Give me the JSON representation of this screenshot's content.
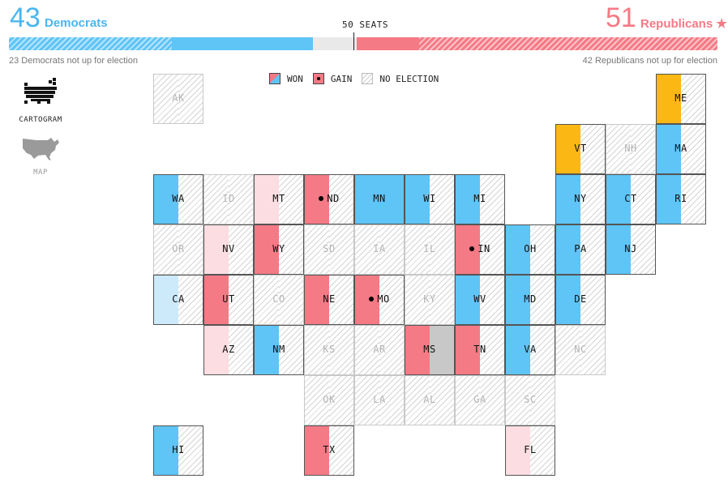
{
  "header": {
    "dem_count": "43",
    "dem_label": "Democrats",
    "rep_count": "51",
    "rep_label": "Republicans ★",
    "seats_label": "50 SEATS",
    "dem_note": "23 Democrats not up for election",
    "rep_note": "42 Republicans not up for election"
  },
  "views": {
    "cartogram_label": "CARTOGRAM",
    "map_label": "MAP",
    "active": "CARTOGRAM"
  },
  "legend": {
    "won": "WON",
    "gain": "GAIN",
    "no_election": "NO ELECTION"
  },
  "colors": {
    "dem": "#5fc4f6",
    "dem_light": "#cdeafb",
    "rep": "#f47a85",
    "rep_light": "#fcdde1",
    "ind": "#fbb714",
    "uncalled": "#c8c8c8"
  },
  "states": [
    {
      "abbr": "AK",
      "result": "none",
      "gain": false
    },
    {
      "abbr": "ME",
      "result": "ind",
      "gain": false
    },
    {
      "abbr": "VT",
      "result": "ind",
      "gain": false
    },
    {
      "abbr": "NH",
      "result": "none",
      "gain": false
    },
    {
      "abbr": "MA",
      "result": "dem",
      "gain": false
    },
    {
      "abbr": "WA",
      "result": "dem",
      "gain": false
    },
    {
      "abbr": "ID",
      "result": "none",
      "gain": false
    },
    {
      "abbr": "MT",
      "result": "rep_light",
      "gain": false
    },
    {
      "abbr": "ND",
      "result": "rep",
      "gain": true
    },
    {
      "abbr": "MN",
      "result": "dem_full",
      "gain": false
    },
    {
      "abbr": "WI",
      "result": "dem",
      "gain": false
    },
    {
      "abbr": "MI",
      "result": "dem",
      "gain": false
    },
    {
      "abbr": "NY",
      "result": "dem",
      "gain": false
    },
    {
      "abbr": "CT",
      "result": "dem",
      "gain": false
    },
    {
      "abbr": "RI",
      "result": "dem",
      "gain": false
    },
    {
      "abbr": "OR",
      "result": "none",
      "gain": false
    },
    {
      "abbr": "NV",
      "result": "rep_light",
      "gain": false
    },
    {
      "abbr": "WY",
      "result": "rep",
      "gain": false
    },
    {
      "abbr": "SD",
      "result": "none",
      "gain": false
    },
    {
      "abbr": "IA",
      "result": "none",
      "gain": false
    },
    {
      "abbr": "IL",
      "result": "none",
      "gain": false
    },
    {
      "abbr": "IN",
      "result": "rep",
      "gain": true
    },
    {
      "abbr": "OH",
      "result": "dem",
      "gain": false
    },
    {
      "abbr": "PA",
      "result": "dem",
      "gain": false
    },
    {
      "abbr": "NJ",
      "result": "dem",
      "gain": false
    },
    {
      "abbr": "CA",
      "result": "dem_light",
      "gain": false
    },
    {
      "abbr": "UT",
      "result": "rep",
      "gain": false
    },
    {
      "abbr": "CO",
      "result": "none",
      "gain": false
    },
    {
      "abbr": "NE",
      "result": "rep",
      "gain": false
    },
    {
      "abbr": "MO",
      "result": "rep",
      "gain": true
    },
    {
      "abbr": "KY",
      "result": "none",
      "gain": false
    },
    {
      "abbr": "WV",
      "result": "dem",
      "gain": false
    },
    {
      "abbr": "MD",
      "result": "dem",
      "gain": false
    },
    {
      "abbr": "DE",
      "result": "dem",
      "gain": false
    },
    {
      "abbr": "AZ",
      "result": "rep_light",
      "gain": false
    },
    {
      "abbr": "NM",
      "result": "dem",
      "gain": false
    },
    {
      "abbr": "KS",
      "result": "none",
      "gain": false
    },
    {
      "abbr": "AR",
      "result": "none",
      "gain": false
    },
    {
      "abbr": "MS",
      "result": "rep_uncalled",
      "gain": false
    },
    {
      "abbr": "TN",
      "result": "rep",
      "gain": false
    },
    {
      "abbr": "VA",
      "result": "dem",
      "gain": false
    },
    {
      "abbr": "NC",
      "result": "none",
      "gain": false
    },
    {
      "abbr": "OK",
      "result": "none",
      "gain": false
    },
    {
      "abbr": "LA",
      "result": "none",
      "gain": false
    },
    {
      "abbr": "AL",
      "result": "none",
      "gain": false
    },
    {
      "abbr": "GA",
      "result": "none",
      "gain": false
    },
    {
      "abbr": "SC",
      "result": "none",
      "gain": false
    },
    {
      "abbr": "HI",
      "result": "dem",
      "gain": false
    },
    {
      "abbr": "TX",
      "result": "rep",
      "gain": false
    },
    {
      "abbr": "FL",
      "result": "rep_light",
      "gain": false
    }
  ]
}
